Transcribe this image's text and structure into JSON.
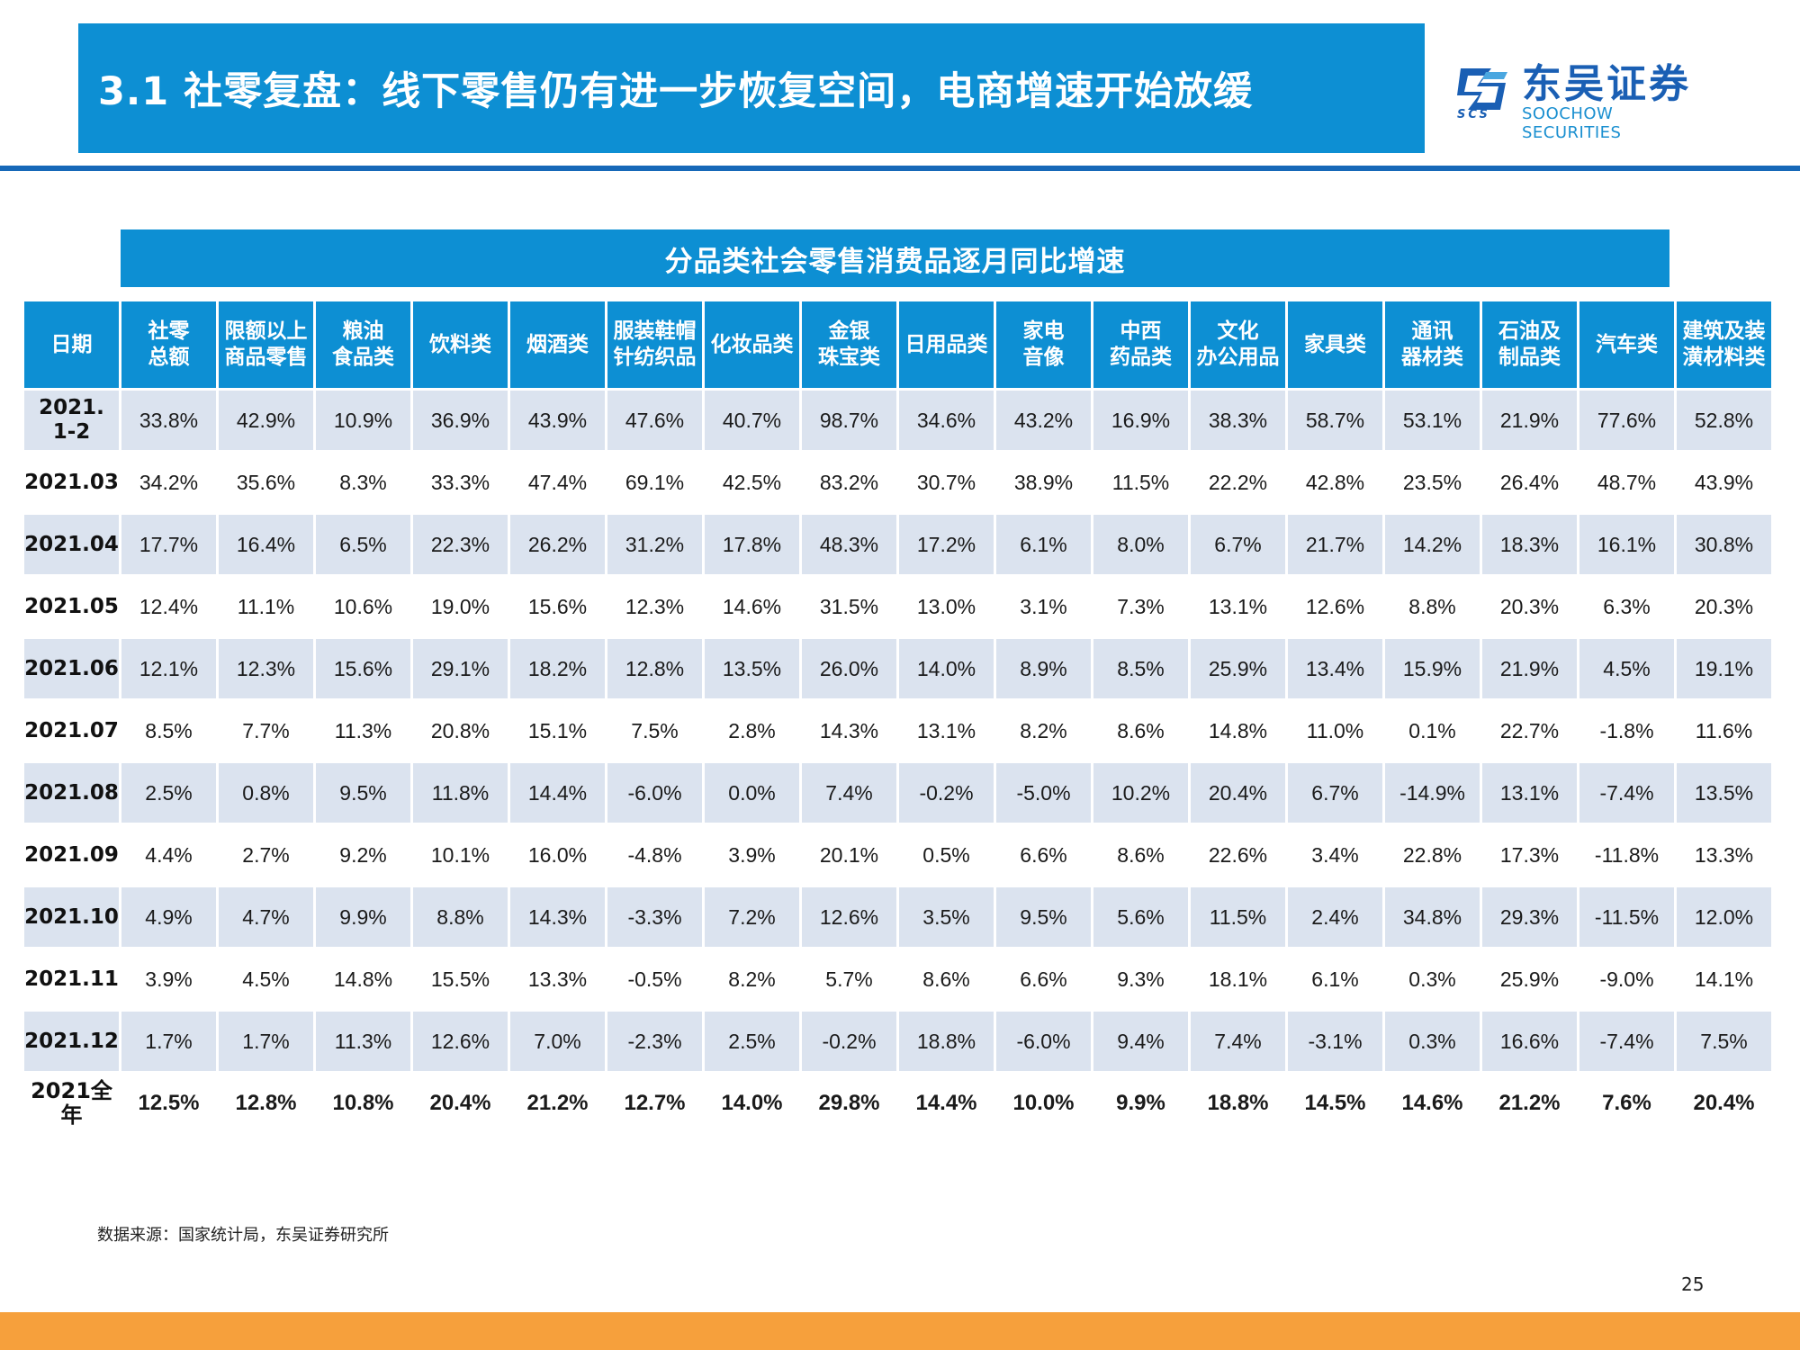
{
  "header": {
    "title": "3.1 社零复盘：线下零售仍有进一步恢复空间，电商增速开始放缓",
    "logo_cn": "东吴证券",
    "logo_en": "SOOCHOW SECURITIES",
    "logo_abbr": "SCS",
    "logo_icon": "soochow-logo-icon"
  },
  "table": {
    "title": "分品类社会零售消费品逐月同比增速",
    "headers": [
      [
        "日期"
      ],
      [
        "社零",
        "总额"
      ],
      [
        "限额以上",
        "商品零售"
      ],
      [
        "粮油",
        "食品类"
      ],
      [
        "饮料类"
      ],
      [
        "烟酒类"
      ],
      [
        "服装鞋帽",
        "针纺织品"
      ],
      [
        "化妆品类"
      ],
      [
        "金银",
        "珠宝类"
      ],
      [
        "日用品类"
      ],
      [
        "家电",
        "音像"
      ],
      [
        "中西",
        "药品类"
      ],
      [
        "文化",
        "办公用品"
      ],
      [
        "家具类"
      ],
      [
        "通讯",
        "器材类"
      ],
      [
        "石油及",
        "制品类"
      ],
      [
        "汽车类"
      ],
      [
        "建筑及装",
        "潢材料类"
      ]
    ],
    "rows": [
      {
        "date": [
          "2021.",
          "1-2"
        ],
        "values": [
          "33.8%",
          "42.9%",
          "10.9%",
          "36.9%",
          "43.9%",
          "47.6%",
          "40.7%",
          "98.7%",
          "34.6%",
          "43.2%",
          "16.9%",
          "38.3%",
          "58.7%",
          "53.1%",
          "21.9%",
          "77.6%",
          "52.8%"
        ]
      },
      {
        "date": [
          "2021.03"
        ],
        "values": [
          "34.2%",
          "35.6%",
          "8.3%",
          "33.3%",
          "47.4%",
          "69.1%",
          "42.5%",
          "83.2%",
          "30.7%",
          "38.9%",
          "11.5%",
          "22.2%",
          "42.8%",
          "23.5%",
          "26.4%",
          "48.7%",
          "43.9%"
        ]
      },
      {
        "date": [
          "2021.04"
        ],
        "values": [
          "17.7%",
          "16.4%",
          "6.5%",
          "22.3%",
          "26.2%",
          "31.2%",
          "17.8%",
          "48.3%",
          "17.2%",
          "6.1%",
          "8.0%",
          "6.7%",
          "21.7%",
          "14.2%",
          "18.3%",
          "16.1%",
          "30.8%"
        ]
      },
      {
        "date": [
          "2021.05"
        ],
        "values": [
          "12.4%",
          "11.1%",
          "10.6%",
          "19.0%",
          "15.6%",
          "12.3%",
          "14.6%",
          "31.5%",
          "13.0%",
          "3.1%",
          "7.3%",
          "13.1%",
          "12.6%",
          "8.8%",
          "20.3%",
          "6.3%",
          "20.3%"
        ]
      },
      {
        "date": [
          "2021.06"
        ],
        "values": [
          "12.1%",
          "12.3%",
          "15.6%",
          "29.1%",
          "18.2%",
          "12.8%",
          "13.5%",
          "26.0%",
          "14.0%",
          "8.9%",
          "8.5%",
          "25.9%",
          "13.4%",
          "15.9%",
          "21.9%",
          "4.5%",
          "19.1%"
        ]
      },
      {
        "date": [
          "2021.07"
        ],
        "values": [
          "8.5%",
          "7.7%",
          "11.3%",
          "20.8%",
          "15.1%",
          "7.5%",
          "2.8%",
          "14.3%",
          "13.1%",
          "8.2%",
          "8.6%",
          "14.8%",
          "11.0%",
          "0.1%",
          "22.7%",
          "-1.8%",
          "11.6%"
        ]
      },
      {
        "date": [
          "2021.08"
        ],
        "values": [
          "2.5%",
          "0.8%",
          "9.5%",
          "11.8%",
          "14.4%",
          "-6.0%",
          "0.0%",
          "7.4%",
          "-0.2%",
          "-5.0%",
          "10.2%",
          "20.4%",
          "6.7%",
          "-14.9%",
          "13.1%",
          "-7.4%",
          "13.5%"
        ]
      },
      {
        "date": [
          "2021.09"
        ],
        "values": [
          "4.4%",
          "2.7%",
          "9.2%",
          "10.1%",
          "16.0%",
          "-4.8%",
          "3.9%",
          "20.1%",
          "0.5%",
          "6.6%",
          "8.6%",
          "22.6%",
          "3.4%",
          "22.8%",
          "17.3%",
          "-11.8%",
          "13.3%"
        ]
      },
      {
        "date": [
          "2021.10"
        ],
        "values": [
          "4.9%",
          "4.7%",
          "9.9%",
          "8.8%",
          "14.3%",
          "-3.3%",
          "7.2%",
          "12.6%",
          "3.5%",
          "9.5%",
          "5.6%",
          "11.5%",
          "2.4%",
          "34.8%",
          "29.3%",
          "-11.5%",
          "12.0%"
        ]
      },
      {
        "date": [
          "2021.11"
        ],
        "values": [
          "3.9%",
          "4.5%",
          "14.8%",
          "15.5%",
          "13.3%",
          "-0.5%",
          "8.2%",
          "5.7%",
          "8.6%",
          "6.6%",
          "9.3%",
          "18.1%",
          "6.1%",
          "0.3%",
          "25.9%",
          "-9.0%",
          "14.1%"
        ]
      },
      {
        "date": [
          "2021.12"
        ],
        "values": [
          "1.7%",
          "1.7%",
          "11.3%",
          "12.6%",
          "7.0%",
          "-2.3%",
          "2.5%",
          "-0.2%",
          "18.8%",
          "-6.0%",
          "9.4%",
          "7.4%",
          "-3.1%",
          "0.3%",
          "16.6%",
          "-7.4%",
          "7.5%"
        ]
      },
      {
        "date": [
          "2021全年"
        ],
        "values": [
          "12.5%",
          "12.8%",
          "10.8%",
          "20.4%",
          "21.2%",
          "12.7%",
          "14.0%",
          "29.8%",
          "14.4%",
          "10.0%",
          "9.9%",
          "18.8%",
          "14.5%",
          "14.6%",
          "21.2%",
          "7.6%",
          "20.4%"
        ]
      }
    ]
  },
  "footer": {
    "source": "数据来源：国家统计局，东吴证券研究所",
    "page_number": "25"
  },
  "colors": {
    "primary_blue": "#0d8fd3",
    "rule_blue": "#1668b8",
    "row_stripe": "#dbe3ef",
    "footer_orange": "#f6a03c"
  }
}
